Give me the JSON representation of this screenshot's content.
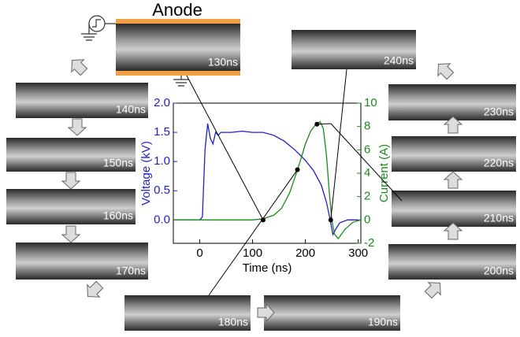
{
  "anode_label": "Anode",
  "panels": [
    {
      "label": "130ns"
    },
    {
      "label": "140ns"
    },
    {
      "label": "150ns"
    },
    {
      "label": "160ns"
    },
    {
      "label": "170ns"
    },
    {
      "label": "180ns"
    },
    {
      "label": "190ns"
    },
    {
      "label": "200ns"
    },
    {
      "label": "210ns"
    },
    {
      "label": "220ns"
    },
    {
      "label": "230ns"
    },
    {
      "label": "240ns"
    }
  ],
  "chart_data": {
    "type": "line",
    "xlabel": "Time (ns)",
    "ylabel": "Voltage (kV)",
    "y2label": "Current (A)",
    "xlim": [
      -50,
      305
    ],
    "xticks": [
      0,
      100,
      200,
      300
    ],
    "ylim": [
      -0.4,
      2.0
    ],
    "yticks": [
      {
        "value": 0,
        "label": "0.0"
      },
      {
        "value": 0.5,
        "label": "0.5"
      },
      {
        "value": 1,
        "label": "1.0"
      },
      {
        "value": 1.5,
        "label": "1.5"
      },
      {
        "value": 2,
        "label": "2.0"
      }
    ],
    "y2lim": [
      -2,
      10
    ],
    "y2ticks": [
      -2,
      0,
      2,
      4,
      6,
      8,
      10
    ],
    "series": [
      {
        "name": "Voltage",
        "color": "#1f1fc8",
        "axis": "y",
        "x": [
          -50,
          0,
          5,
          10,
          15,
          20,
          25,
          30,
          35,
          40,
          60,
          80,
          100,
          120,
          140,
          160,
          180,
          200,
          215,
          230,
          240,
          247,
          252,
          258,
          265,
          280,
          300
        ],
        "values": [
          0,
          0,
          0.05,
          1.2,
          1.65,
          1.4,
          1.3,
          1.5,
          1.45,
          1.5,
          1.5,
          1.52,
          1.5,
          1.5,
          1.45,
          1.35,
          1.2,
          1.02,
          0.85,
          0.6,
          0.3,
          0,
          -0.25,
          -0.15,
          -0.05,
          0,
          0
        ]
      },
      {
        "name": "Current",
        "color": "#1a8a1a",
        "axis": "y2",
        "x": [
          -50,
          0,
          50,
          100,
          120,
          140,
          155,
          170,
          180,
          190,
          200,
          210,
          220,
          228,
          234,
          240,
          245,
          250,
          255,
          262,
          275,
          290,
          305
        ],
        "values": [
          0,
          0,
          0,
          0,
          0.1,
          0.4,
          1,
          2.3,
          3.6,
          5,
          6.5,
          7.6,
          8.2,
          8.4,
          7.8,
          5.5,
          2.5,
          0,
          -1.2,
          -1.6,
          -0.8,
          -0.2,
          0
        ]
      }
    ],
    "markers": [
      {
        "x": 120,
        "value": 0,
        "axis": "y"
      },
      {
        "x": 185,
        "value": 4.3,
        "axis": "y2"
      },
      {
        "x": 222,
        "value": 8.2,
        "axis": "y2"
      },
      {
        "x": 248,
        "value": 0,
        "axis": "y2"
      }
    ]
  }
}
